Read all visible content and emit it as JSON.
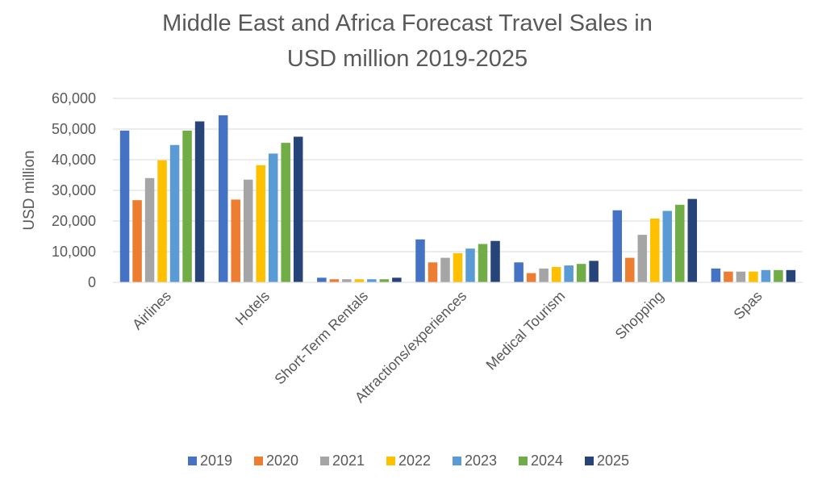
{
  "chart_data": {
    "type": "bar",
    "title_lines": [
      "Middle East and Africa Forecast Travel Sales in",
      "USD million 2019-2025"
    ],
    "xlabel": "",
    "ylabel": "USD million",
    "ylim": [
      0,
      60000
    ],
    "yticks": [
      0,
      10000,
      20000,
      30000,
      40000,
      50000,
      60000
    ],
    "ytick_labels": [
      "0",
      "10,000",
      "20,000",
      "30,000",
      "40,000",
      "50,000",
      "60,000"
    ],
    "grid": true,
    "legend_position": "bottom",
    "categories": [
      "Airlines",
      "Hotels",
      "Short-Term Rentals",
      "Attractions/experiences",
      "Medical Tourism",
      "Shopping",
      "Spas"
    ],
    "series": [
      {
        "name": "2019",
        "color": "#4472C4",
        "values": [
          49500,
          54500,
          1500,
          14000,
          6500,
          23500,
          4500
        ]
      },
      {
        "name": "2020",
        "color": "#ED7D31",
        "values": [
          26800,
          27000,
          1000,
          6500,
          3000,
          8000,
          3500
        ]
      },
      {
        "name": "2021",
        "color": "#A5A5A5",
        "values": [
          34000,
          33500,
          1000,
          8000,
          4500,
          15500,
          3500
        ]
      },
      {
        "name": "2022",
        "color": "#FFC000",
        "values": [
          39800,
          38200,
          1000,
          9500,
          5000,
          20800,
          3500
        ]
      },
      {
        "name": "2023",
        "color": "#5B9BD5",
        "values": [
          44800,
          42000,
          1000,
          11000,
          5500,
          23300,
          4000
        ]
      },
      {
        "name": "2024",
        "color": "#70AD47",
        "values": [
          49500,
          45500,
          1000,
          12500,
          6000,
          25300,
          4000
        ]
      },
      {
        "name": "2025",
        "color": "#264478",
        "values": [
          52500,
          47500,
          1500,
          13500,
          7000,
          27200,
          4000
        ]
      }
    ]
  }
}
